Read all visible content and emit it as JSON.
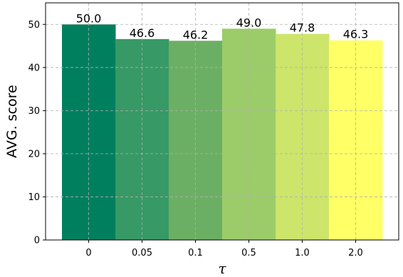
{
  "chart_data": {
    "type": "bar",
    "categories": [
      "0",
      "0.05",
      "0.1",
      "0.5",
      "1.0",
      "2.0"
    ],
    "values": [
      50.0,
      46.6,
      46.2,
      49.0,
      47.8,
      46.3
    ],
    "data_labels": [
      "50.0",
      "46.6",
      "46.2",
      "49.0",
      "47.8",
      "46.3"
    ],
    "colors": [
      "#007f5f",
      "#379966",
      "#6baf64",
      "#9bcc69",
      "#cde56a",
      "#ffff66"
    ],
    "xlabel": "τ",
    "ylabel": "AVG. score",
    "ylim": [
      0,
      55
    ],
    "yticks": [
      0,
      10,
      20,
      30,
      40,
      50
    ],
    "ytick_labels": [
      "0",
      "10",
      "20",
      "30",
      "40",
      "50"
    ],
    "grid": true
  }
}
